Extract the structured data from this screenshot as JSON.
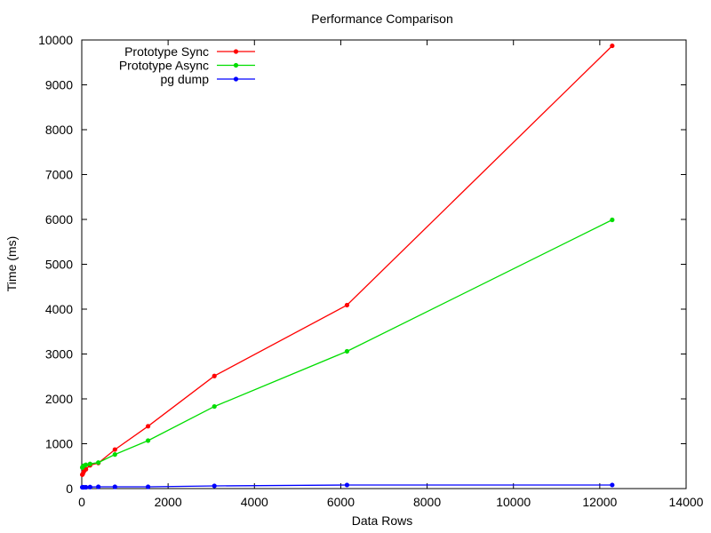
{
  "chart_data": {
    "type": "line",
    "title": "Performance Comparison",
    "xlabel": "Data Rows",
    "ylabel": "Time (ms)",
    "xlim": [
      0,
      14000
    ],
    "ylim": [
      0,
      10000
    ],
    "xticks": [
      0,
      2000,
      4000,
      6000,
      8000,
      10000,
      12000,
      14000
    ],
    "yticks": [
      0,
      1000,
      2000,
      3000,
      4000,
      5000,
      6000,
      7000,
      8000,
      9000,
      10000
    ],
    "xtick_labels": [
      "0",
      "2000",
      "4000",
      "6000",
      "8000",
      "10000",
      "12000",
      "14000"
    ],
    "ytick_labels": [
      "0",
      "1000",
      "2000",
      "3000",
      "4000",
      "5000",
      "6000",
      "7000",
      "8000",
      "9000",
      "10000"
    ],
    "grid": false,
    "legend_position": "top-left",
    "series": [
      {
        "name": "Prototype Sync",
        "color": "#ff0000",
        "x": [
          12,
          24,
          48,
          96,
          192,
          384,
          768,
          1536,
          3072,
          6144,
          12288
        ],
        "y": [
          310,
          330,
          380,
          430,
          520,
          570,
          870,
          1390,
          2510,
          4090,
          9870
        ]
      },
      {
        "name": "Prototype Async",
        "color": "#00dd00",
        "x": [
          12,
          24,
          48,
          96,
          192,
          384,
          768,
          1536,
          3072,
          6144,
          12288
        ],
        "y": [
          470,
          490,
          510,
          530,
          550,
          580,
          760,
          1070,
          1830,
          3060,
          5990
        ]
      },
      {
        "name": "pg dump",
        "color": "#0000ff",
        "x": [
          12,
          24,
          48,
          96,
          192,
          384,
          768,
          1536,
          3072,
          6144,
          12288
        ],
        "y": [
          30,
          30,
          30,
          30,
          35,
          40,
          40,
          40,
          60,
          80,
          80
        ]
      }
    ]
  }
}
